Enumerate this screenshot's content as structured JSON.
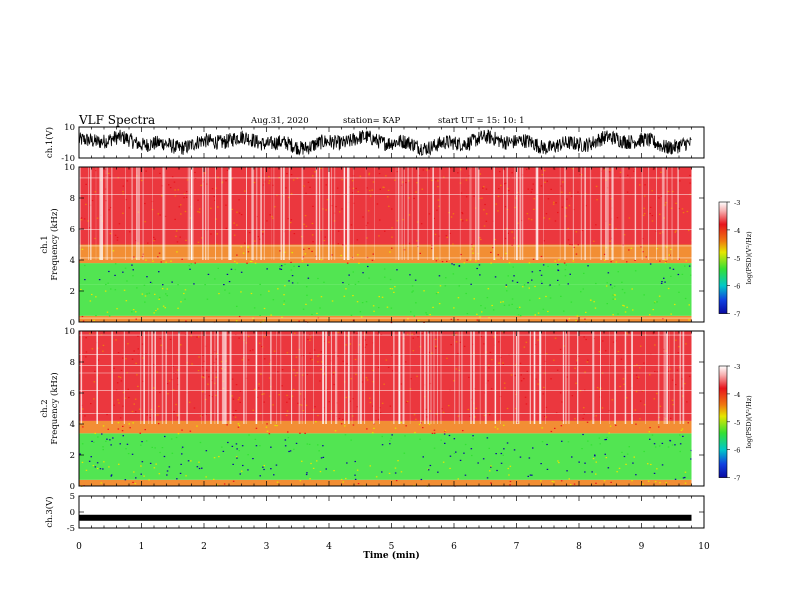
{
  "header": {
    "title": "VLF Spectra",
    "date": "Aug.31, 2020",
    "station": "station= KAP",
    "start": "start  UT =   15: 10: 1"
  },
  "colors": {
    "spectrum_bg": "#ffffff",
    "red": "#e8141c",
    "orange": "#f07a10",
    "yellow": "#e6e600",
    "green": "#34e034",
    "blue": "#0a0aa0"
  },
  "colorbar": {
    "label": "log(PSD)(V²/Hz)",
    "ticks": [
      "-3",
      "-4",
      "-5",
      "-6",
      "-7"
    ]
  },
  "chart_data": [
    {
      "type": "line",
      "name": "ch1-waveform",
      "ylabel": "ch.1(V)",
      "ylim": [
        -10,
        10
      ],
      "yticks": [
        "10",
        "-10"
      ],
      "xlim": [
        0,
        10
      ],
      "approx_mean": 0,
      "approx_amplitude": 6
    },
    {
      "type": "heatmap",
      "name": "ch1-spectrogram",
      "ylabel": "ch.1",
      "ylabel2": "Frequency (kHz)",
      "ylim": [
        0,
        10
      ],
      "yticks": [
        "0",
        "2",
        "4",
        "6",
        "8",
        "10"
      ],
      "xlim": [
        0,
        9.8
      ],
      "bands": [
        {
          "from": 0,
          "to": 0.4,
          "level": -3.8
        },
        {
          "from": 0.4,
          "to": 2.4,
          "level": -4.8
        },
        {
          "from": 2.4,
          "to": 3.8,
          "level": -5.3
        },
        {
          "from": 3.8,
          "to": 5.0,
          "level": -3.7
        },
        {
          "from": 5.0,
          "to": 10,
          "level": -3.1
        }
      ]
    },
    {
      "type": "heatmap",
      "name": "ch2-spectrogram",
      "ylabel": "ch.2",
      "ylabel2": "Frequency (kHz)",
      "ylim": [
        0,
        10
      ],
      "yticks": [
        "0",
        "2",
        "4",
        "6",
        "8",
        "10"
      ],
      "xlim": [
        0,
        9.8
      ],
      "bands": [
        {
          "from": 0,
          "to": 0.4,
          "level": -3.8
        },
        {
          "from": 0.4,
          "to": 2.0,
          "level": -4.9
        },
        {
          "from": 2.0,
          "to": 3.4,
          "level": -5.3
        },
        {
          "from": 3.4,
          "to": 4.2,
          "level": -3.7
        },
        {
          "from": 4.2,
          "to": 10,
          "level": -3.1
        }
      ]
    },
    {
      "type": "line",
      "name": "ch3-waveform",
      "ylabel": "ch.3(V)",
      "ylim": [
        -5,
        5
      ],
      "yticks": [
        "5",
        "0",
        "-5"
      ],
      "xlim": [
        0,
        10
      ],
      "approx_mean": -1.8
    }
  ],
  "xaxis": {
    "label": "Time  (min)",
    "ticks": [
      "0",
      "1",
      "2",
      "3",
      "4",
      "5",
      "6",
      "7",
      "8",
      "9",
      "10"
    ],
    "xlim": [
      0,
      10
    ]
  }
}
